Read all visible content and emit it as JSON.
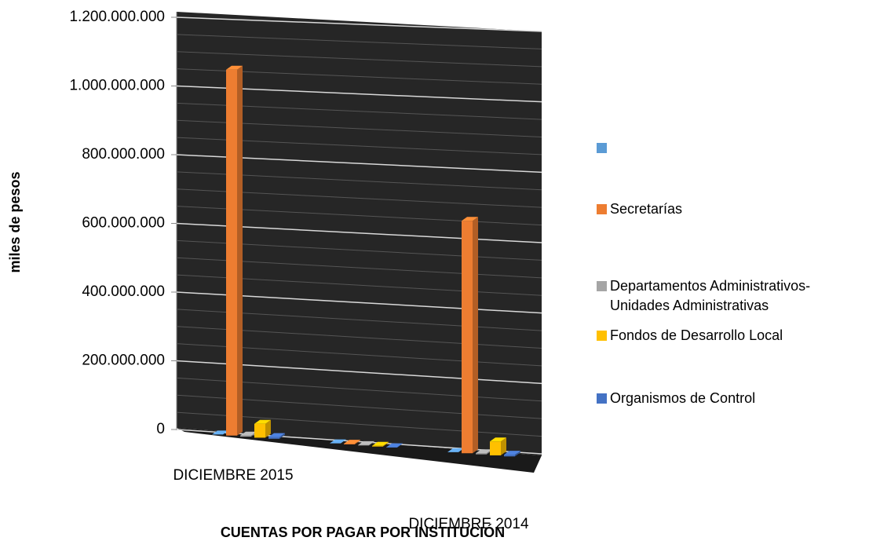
{
  "chart_data": {
    "type": "bar3d",
    "x_label": "CUENTAS POR PAGAR POR INSTITUCIÓN",
    "y_label": "miles de pesos",
    "categories": [
      "DICIEMBRE 2015",
      null,
      "DICIEMBRE 2014"
    ],
    "series": [
      {
        "color": "#5b9bd5",
        "values": [
          0,
          0,
          0
        ]
      },
      {
        "name": "Secretarías",
        "color": "#ed7d31",
        "values": [
          1055000000,
          2000000,
          670000000
        ]
      },
      {
        "name": "Departamentos Administrativos-Unidades Administrativas",
        "color": "#a5a5a5",
        "values": [
          3000000,
          1000000,
          3000000
        ]
      },
      {
        "name": "Fondos de Desarrollo Local",
        "color": "#ffc000",
        "values": [
          40000000,
          2000000,
          40000000
        ]
      },
      {
        "name": "Organismos de Control",
        "color": "#4472c4",
        "values": [
          5000000,
          1000000,
          5000000
        ]
      }
    ],
    "ylim": [
      0,
      1200000000
    ],
    "yticks": [
      0,
      {
        "value": 200000000,
        "label": "200.000.000"
      },
      {
        "value": 400000000,
        "label": "400.000.000"
      },
      {
        "value": 600000000,
        "label": "600.000.000"
      },
      {
        "value": 800000000,
        "label": "800.000.000"
      },
      {
        "value": 1000000000,
        "label": "1.000.000.000"
      },
      {
        "value": 1200000000,
        "label": "1.200.000.000"
      }
    ],
    "grid": true
  }
}
